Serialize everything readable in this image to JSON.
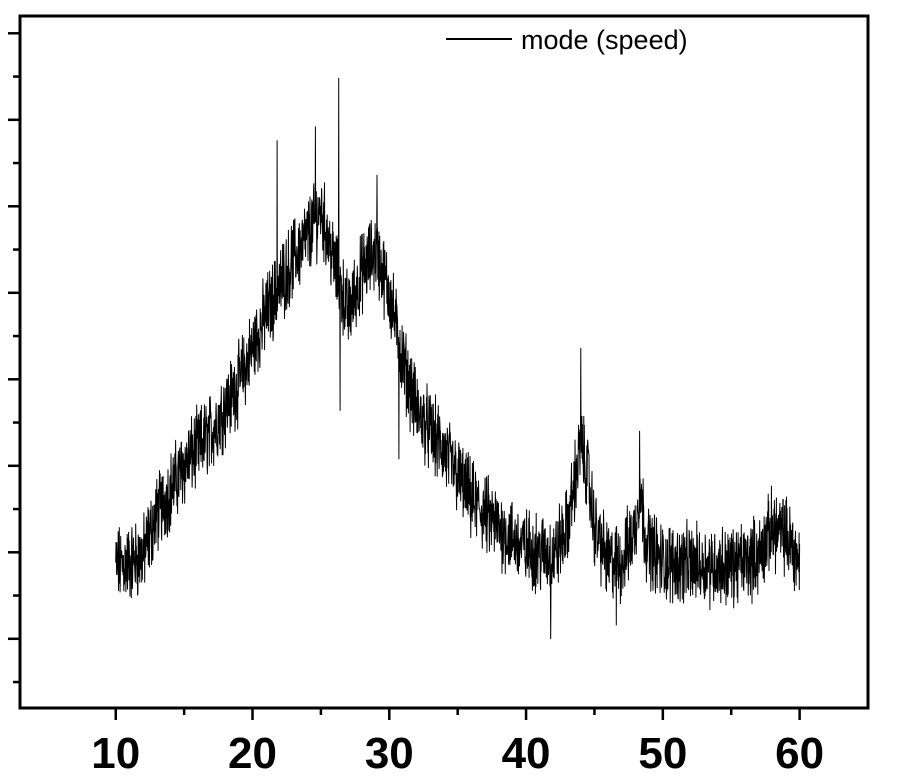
{
  "chart_data": {
    "type": "line",
    "title": "",
    "xlabel": "",
    "ylabel": "",
    "xlim": [
      3,
      65
    ],
    "ylim": [
      0,
      100
    ],
    "x_tick_labels": [
      "10",
      "20",
      "30",
      "40",
      "50",
      "60"
    ],
    "x_ticks": [
      10,
      20,
      30,
      40,
      50,
      60
    ],
    "x_minor_ticks": [
      15,
      25,
      35,
      45,
      55
    ],
    "y_ticks_major": [
      10,
      22.5,
      35,
      47.5,
      60,
      72.5,
      85,
      97.5
    ],
    "y_ticks_minor": [
      3.75,
      16.25,
      28.75,
      41.25,
      53.75,
      66.25,
      78.75,
      91.25
    ],
    "y_tick_labels_shown": false,
    "grid": false,
    "legend": {
      "position": "top-right",
      "entries": [
        "mode (speed)"
      ]
    },
    "noise_amplitude": 4.5,
    "series": [
      {
        "name": "mode (speed)",
        "color": "#000000",
        "x_range": [
          10,
          60
        ],
        "envelope": [
          {
            "x": 10,
            "y": 20.5
          },
          {
            "x": 11,
            "y": 21
          },
          {
            "x": 12,
            "y": 22
          },
          {
            "x": 13,
            "y": 28
          },
          {
            "x": 15,
            "y": 35
          },
          {
            "x": 17,
            "y": 40
          },
          {
            "x": 19,
            "y": 47
          },
          {
            "x": 21,
            "y": 57
          },
          {
            "x": 23,
            "y": 65
          },
          {
            "x": 24,
            "y": 68
          },
          {
            "x": 25,
            "y": 72
          },
          {
            "x": 26,
            "y": 64
          },
          {
            "x": 27,
            "y": 57
          },
          {
            "x": 28,
            "y": 63
          },
          {
            "x": 29,
            "y": 66
          },
          {
            "x": 30,
            "y": 60
          },
          {
            "x": 31,
            "y": 50
          },
          {
            "x": 32,
            "y": 43
          },
          {
            "x": 34,
            "y": 37
          },
          {
            "x": 36,
            "y": 30
          },
          {
            "x": 38,
            "y": 26
          },
          {
            "x": 40,
            "y": 23
          },
          {
            "x": 42,
            "y": 22
          },
          {
            "x": 43,
            "y": 26
          },
          {
            "x": 44,
            "y": 38
          },
          {
            "x": 44.5,
            "y": 34
          },
          {
            "x": 45,
            "y": 26
          },
          {
            "x": 46,
            "y": 21
          },
          {
            "x": 47,
            "y": 21
          },
          {
            "x": 48,
            "y": 26
          },
          {
            "x": 48.3,
            "y": 32
          },
          {
            "x": 48.8,
            "y": 24
          },
          {
            "x": 50,
            "y": 21
          },
          {
            "x": 55,
            "y": 20.5
          },
          {
            "x": 57,
            "y": 22
          },
          {
            "x": 58,
            "y": 26
          },
          {
            "x": 59,
            "y": 25
          },
          {
            "x": 60,
            "y": 21
          }
        ],
        "spikes": [
          {
            "x": 21.8,
            "y": 82
          },
          {
            "x": 24.6,
            "y": 84
          },
          {
            "x": 26.3,
            "y": 91
          },
          {
            "x": 29.1,
            "y": 77
          },
          {
            "x": 44.0,
            "y": 52
          },
          {
            "x": 48.3,
            "y": 40
          },
          {
            "x": 26.4,
            "y": 43
          },
          {
            "x": 30.7,
            "y": 36
          },
          {
            "x": 41.8,
            "y": 10
          },
          {
            "x": 46.6,
            "y": 12
          }
        ]
      }
    ]
  }
}
